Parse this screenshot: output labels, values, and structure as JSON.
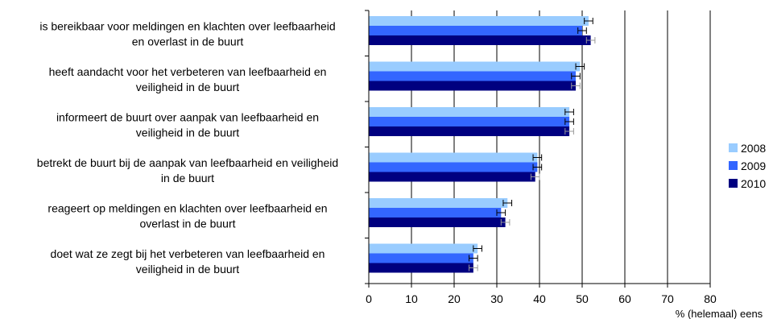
{
  "chart_data": {
    "type": "bar",
    "orientation": "horizontal",
    "categories": [
      "is bereikbaar voor meldingen en klachten over leefbaarheid en overlast in de buurt",
      "heeft aandacht voor het verbeteren van leefbaarheid en veiligheid in de buurt",
      "informeert de buurt over aanpak van leefbaarheid en veiligheid in de buurt",
      "betrekt de buurt bij de aanpak van leefbaarheid en veiligheid in de buurt",
      "reageert op meldingen en klachten over leefbaarheid en overlast in de buurt",
      "doet wat ze zegt bij het verbeteren van leefbaarheid en veiligheid in de buurt"
    ],
    "category_lines": [
      [
        "is bereikbaar voor meldingen en klachten over leefbaarheid",
        "en overlast in de buurt"
      ],
      [
        "heeft aandacht voor het verbeteren van leefbaarheid en",
        "veiligheid in de buurt"
      ],
      [
        "informeert de buurt over aanpak van leefbaarheid en",
        "veiligheid in de buurt"
      ],
      [
        "betrekt de buurt bij de aanpak van leefbaarheid en veiligheid",
        "in de buurt"
      ],
      [
        "reageert op meldingen en klachten over leefbaarheid en",
        "overlast in de buurt"
      ],
      [
        "doet wat ze zegt bij het verbeteren van leefbaarheid en",
        "veiligheid in de buurt"
      ]
    ],
    "series": [
      {
        "name": "2008",
        "color": "#99CCFF",
        "values": [
          51.5,
          49.5,
          47,
          39.5,
          32.5,
          25.5
        ],
        "errors": [
          1.0,
          1.0,
          1.0,
          1.0,
          1.0,
          1.0
        ]
      },
      {
        "name": "2009",
        "color": "#3366FF",
        "values": [
          50,
          48.5,
          47,
          39.5,
          31,
          24.5
        ],
        "errors": [
          1.0,
          1.0,
          1.0,
          1.0,
          1.0,
          1.0
        ]
      },
      {
        "name": "2010",
        "color": "#000080",
        "values": [
          52,
          48.5,
          47,
          39,
          32,
          24.5
        ],
        "errors": [
          1.0,
          1.0,
          1.0,
          1.0,
          1.0,
          1.0
        ]
      }
    ],
    "xlim": [
      0,
      80
    ],
    "xticks": [
      0,
      10,
      20,
      30,
      40,
      50,
      60,
      70,
      80
    ],
    "xlabel": "% (helemaal) eens",
    "grid": "vertical",
    "legend": "right"
  }
}
